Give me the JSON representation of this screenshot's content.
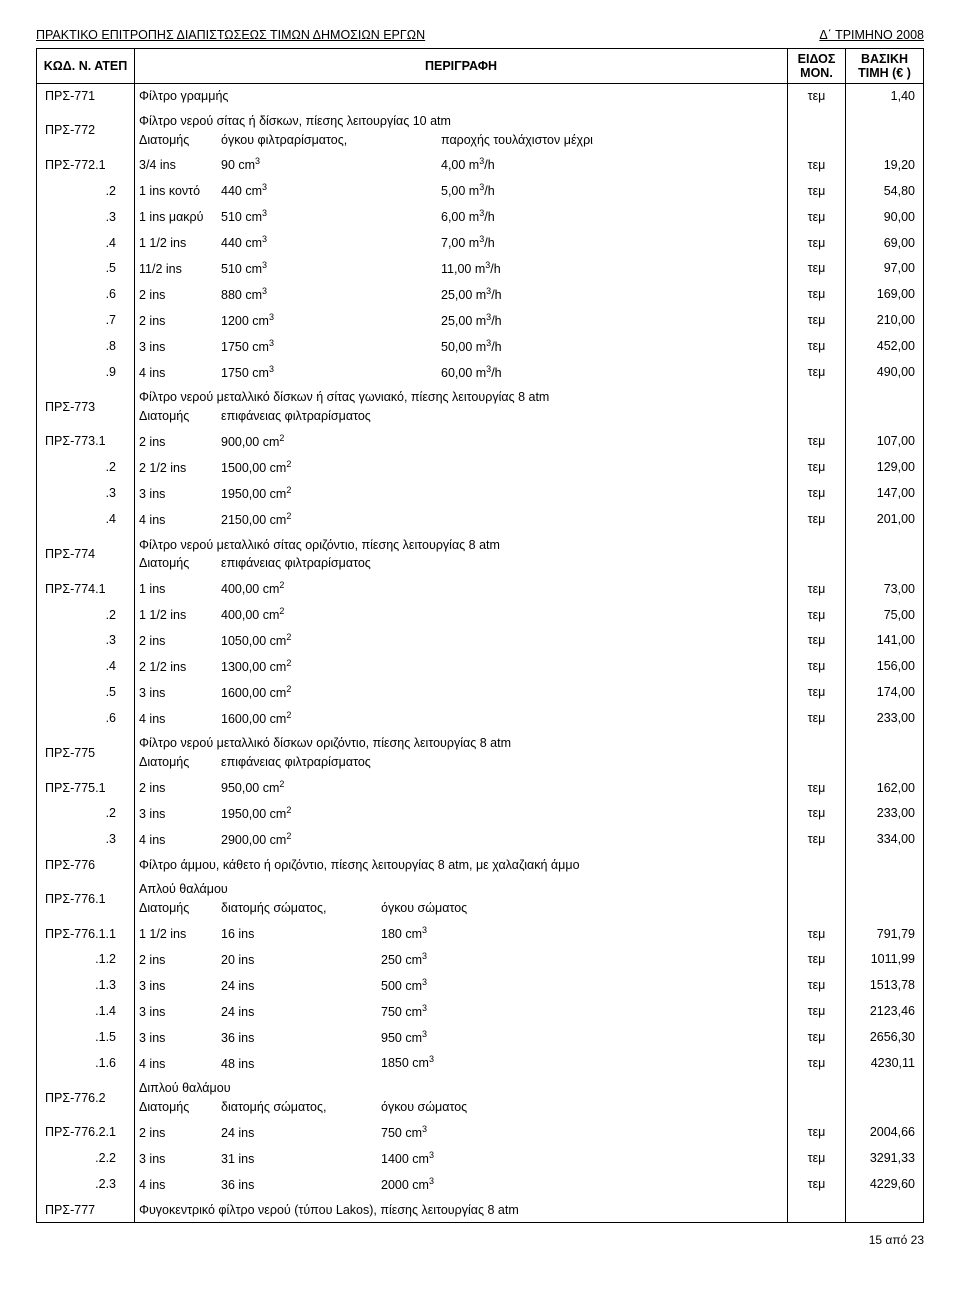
{
  "header_left": "ΠΡΑΚΤΙΚΟ ΕΠΙΤΡΟΠΗΣ ΔΙΑΠΙΣΤΩΣΕΩΣ ΤΙΜΩΝ ΔΗΜΟΣΙΩΝ ΕΡΓΩΝ",
  "header_right": "Δ΄ ΤΡΙΜΗΝΟ 2008",
  "columns": {
    "code": "ΚΩΔ. Ν. ΑΤΕΠ",
    "desc": "ΠΕΡΙΓΡΑΦΗ",
    "unit": "ΕΙΔΟΣ ΜΟΝ.",
    "price": "ΒΑΣΙΚΗ ΤΙΜΗ (€ )"
  },
  "footer_page": "15 από 23",
  "rows": [
    {
      "code": "ΠΡΣ-771",
      "type": "simple",
      "d": "Φίλτρο γραμμής",
      "unit": "τεμ",
      "price": "1,40"
    },
    {
      "code": "ΠΡΣ-772",
      "type": "heading2",
      "l1": "Φίλτρο νερού σίτας ή δίσκων, πίεσης λειτουργίας 10 atm",
      "l2a": "Διατομής",
      "l2b": "όγκου φιλτραρίσματος,",
      "l2c": "παροχής τουλάχιστον μέχρι"
    },
    {
      "code": "ΠΡΣ-772.1",
      "type": "p3",
      "p1": "3/4 ins",
      "p2": "90 cm",
      "sup2": "3",
      "p3": "4,00 m",
      "sup3": "3",
      "p3b": "/h",
      "unit": "τεμ",
      "price": "19,20"
    },
    {
      "code": ".2",
      "sub": true,
      "type": "p3",
      "p1": "1 ins κοντό",
      "p2": "440 cm",
      "sup2": "3",
      "p3": "5,00 m",
      "sup3": "3",
      "p3b": "/h",
      "unit": "τεμ",
      "price": "54,80"
    },
    {
      "code": ".3",
      "sub": true,
      "type": "p3",
      "p1": "1 ins μακρύ",
      "p2": "510 cm",
      "sup2": "3",
      "p3": "6,00 m",
      "sup3": "3",
      "p3b": "/h",
      "unit": "τεμ",
      "price": "90,00"
    },
    {
      "code": ".4",
      "sub": true,
      "type": "p3",
      "p1": "1 1/2 ins",
      "p2": "440 cm",
      "sup2": "3",
      "p3": "7,00 m",
      "sup3": "3",
      "p3b": "/h",
      "unit": "τεμ",
      "price": "69,00"
    },
    {
      "code": ".5",
      "sub": true,
      "type": "p3",
      "p1": "11/2 ins",
      "p2": "510 cm",
      "sup2": "3",
      "p3": "11,00 m",
      "sup3": "3",
      "p3b": "/h",
      "unit": "τεμ",
      "price": "97,00"
    },
    {
      "code": ".6",
      "sub": true,
      "type": "p3",
      "p1": "2 ins",
      "p2": "880 cm",
      "sup2": "3",
      "p3": "25,00 m",
      "sup3": "3",
      "p3b": "/h",
      "unit": "τεμ",
      "price": "169,00"
    },
    {
      "code": ".7",
      "sub": true,
      "type": "p3",
      "p1": "2 ins",
      "p2": "1200 cm",
      "sup2": "3",
      "p3": "25,00 m",
      "sup3": "3",
      "p3b": "/h",
      "unit": "τεμ",
      "price": "210,00"
    },
    {
      "code": ".8",
      "sub": true,
      "type": "p3",
      "p1": "3 ins",
      "p2": "1750 cm",
      "sup2": "3",
      "p3": "50,00 m",
      "sup3": "3",
      "p3b": "/h",
      "unit": "τεμ",
      "price": "452,00"
    },
    {
      "code": ".9",
      "sub": true,
      "type": "p3",
      "p1": "4 ins",
      "p2": "1750 cm",
      "sup2": "3",
      "p3": "60,00 m",
      "sup3": "3",
      "p3b": "/h",
      "unit": "τεμ",
      "price": "490,00"
    },
    {
      "code": "ΠΡΣ-773",
      "type": "heading2",
      "l1": "Φίλτρο νερού μεταλλικό δίσκων ή σίτας γωνιακό, πίεσης λειτουργίας 8 atm",
      "l2a": "Διατομής",
      "l2b": "επιφάνειας φιλτραρίσματος",
      "l2c": ""
    },
    {
      "code": "ΠΡΣ-773.1",
      "type": "p2",
      "p1": "2 ins",
      "p2": "900,00 cm",
      "sup2": "2",
      "unit": "τεμ",
      "price": "107,00"
    },
    {
      "code": ".2",
      "sub": true,
      "type": "p2",
      "p1": "2 1/2 ins",
      "p2": "1500,00 cm",
      "sup2": "2",
      "unit": "τεμ",
      "price": "129,00"
    },
    {
      "code": ".3",
      "sub": true,
      "type": "p2",
      "p1": "3 ins",
      "p2": "1950,00 cm",
      "sup2": "2",
      "unit": "τεμ",
      "price": "147,00"
    },
    {
      "code": ".4",
      "sub": true,
      "type": "p2",
      "p1": "4 ins",
      "p2": "2150,00 cm",
      "sup2": "2",
      "unit": "τεμ",
      "price": "201,00"
    },
    {
      "code": "ΠΡΣ-774",
      "type": "heading2",
      "l1": "Φίλτρο νερού μεταλλικό σίτας οριζόντιο, πίεσης λειτουργίας 8 atm",
      "l2a": "Διατομής",
      "l2b": "επιφάνειας φιλτραρίσματος",
      "l2c": ""
    },
    {
      "code": "ΠΡΣ-774.1",
      "type": "p2",
      "p1": "1 ins",
      "p2": "400,00 cm",
      "sup2": "2",
      "unit": "τεμ",
      "price": "73,00"
    },
    {
      "code": ".2",
      "sub": true,
      "type": "p2",
      "p1": "1 1/2 ins",
      "p2": "400,00 cm",
      "sup2": "2",
      "unit": "τεμ",
      "price": "75,00"
    },
    {
      "code": ".3",
      "sub": true,
      "type": "p2",
      "p1": "2 ins",
      "p2": "1050,00 cm",
      "sup2": "2",
      "unit": "τεμ",
      "price": "141,00"
    },
    {
      "code": ".4",
      "sub": true,
      "type": "p2",
      "p1": "2 1/2 ins",
      "p2": "1300,00 cm",
      "sup2": "2",
      "unit": "τεμ",
      "price": "156,00"
    },
    {
      "code": ".5",
      "sub": true,
      "type": "p2",
      "p1": "3 ins",
      "p2": "1600,00 cm",
      "sup2": "2",
      "unit": "τεμ",
      "price": "174,00"
    },
    {
      "code": ".6",
      "sub": true,
      "type": "p2",
      "p1": "4 ins",
      "p2": "1600,00 cm",
      "sup2": "2",
      "unit": "τεμ",
      "price": "233,00"
    },
    {
      "code": "ΠΡΣ-775",
      "type": "heading2",
      "l1": "Φίλτρο νερού μεταλλικό δίσκων οριζόντιο, πίεσης λειτουργίας 8 atm",
      "l2a": "Διατομής",
      "l2b": "επιφάνειας φιλτραρίσματος",
      "l2c": ""
    },
    {
      "code": "ΠΡΣ-775.1",
      "type": "p2",
      "p1": "2 ins",
      "p2": "950,00 cm",
      "sup2": "2",
      "unit": "τεμ",
      "price": "162,00"
    },
    {
      "code": ".2",
      "sub": true,
      "type": "p2",
      "p1": "3 ins",
      "p2": "1950,00 cm",
      "sup2": "2",
      "unit": "τεμ",
      "price": "233,00"
    },
    {
      "code": ".3",
      "sub": true,
      "type": "p2",
      "p1": "4 ins",
      "p2": "2900,00 cm",
      "sup2": "2",
      "unit": "τεμ",
      "price": "334,00"
    },
    {
      "code": "ΠΡΣ-776",
      "type": "heading1",
      "l1": "Φίλτρο άμμου, κάθετο ή οριζόντιο, πίεσης λειτουργίας 8 atm, με χαλαζιακή άμμο"
    },
    {
      "code": "ΠΡΣ-776.1",
      "type": "heading2b",
      "l1": "Απλού θαλάμου",
      "l2a": "Διατομής",
      "l2b": "διατομής σώματος,",
      "l2c": "όγκου σώματος"
    },
    {
      "code": "ΠΡΣ-776.1.1",
      "type": "p3b",
      "p1": "1 1/2 ins",
      "p2": "16 ins",
      "p3": "180 cm",
      "sup3": "3",
      "unit": "τεμ",
      "price": "791,79"
    },
    {
      "code": ".1.2",
      "sub": true,
      "type": "p3b",
      "p1": "2 ins",
      "p2": "20 ins",
      "p3": "250 cm",
      "sup3": "3",
      "unit": "τεμ",
      "price": "1011,99"
    },
    {
      "code": ".1.3",
      "sub": true,
      "type": "p3b",
      "p1": "3 ins",
      "p2": "24 ins",
      "p3": "500 cm",
      "sup3": "3",
      "unit": "τεμ",
      "price": "1513,78"
    },
    {
      "code": ".1.4",
      "sub": true,
      "type": "p3b",
      "p1": "3 ins",
      "p2": "24 ins",
      "p3": "750 cm",
      "sup3": "3",
      "unit": "τεμ",
      "price": "2123,46"
    },
    {
      "code": ".1.5",
      "sub": true,
      "type": "p3b",
      "p1": "3 ins",
      "p2": "36 ins",
      "p3": "950 cm",
      "sup3": "3",
      "unit": "τεμ",
      "price": "2656,30"
    },
    {
      "code": ".1.6",
      "sub": true,
      "type": "p3b",
      "p1": "4 ins",
      "p2": "48 ins",
      "p3": "1850 cm",
      "sup3": "3",
      "unit": "τεμ",
      "price": "4230,11"
    },
    {
      "code": "ΠΡΣ-776.2",
      "type": "heading2b",
      "l1": "Διπλού θαλάμου",
      "l2a": "Διατομής",
      "l2b": "διατομής σώματος,",
      "l2c": "όγκου σώματος"
    },
    {
      "code": "ΠΡΣ-776.2.1",
      "type": "p3b",
      "p1": "2 ins",
      "p2": "24 ins",
      "p3": "750 cm",
      "sup3": "3",
      "unit": "τεμ",
      "price": "2004,66"
    },
    {
      "code": ".2.2",
      "sub": true,
      "type": "p3b",
      "p1": "3 ins",
      "p2": "31 ins",
      "p3": "1400 cm",
      "sup3": "3",
      "unit": "τεμ",
      "price": "3291,33"
    },
    {
      "code": ".2.3",
      "sub": true,
      "type": "p3b",
      "p1": "4 ins",
      "p2": "36 ins",
      "p3": "2000 cm",
      "sup3": "3",
      "unit": "τεμ",
      "price": "4229,60"
    },
    {
      "code": "ΠΡΣ-777",
      "type": "simple",
      "d": "Φυγοκεντρικό φίλτρο νερού (τύπου Lakos), πίεσης λειτουργίας 8 atm",
      "unit": "",
      "price": ""
    }
  ]
}
